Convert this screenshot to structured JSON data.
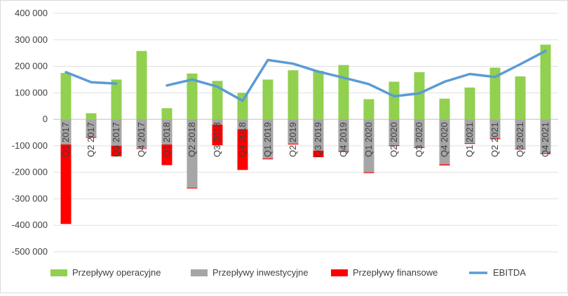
{
  "chart_data": {
    "type": "bar",
    "title": "",
    "xlabel": "",
    "ylabel": "",
    "ylim": [
      -500000,
      400000
    ],
    "yticks": [
      400000,
      300000,
      200000,
      100000,
      0,
      -100000,
      -200000,
      -300000,
      -400000,
      -500000
    ],
    "ytick_labels": [
      "400 000",
      "300 000",
      "200 000",
      "100 000",
      "0",
      "-100 000",
      "-200 000",
      "-300 000",
      "-400 000",
      "-500 000"
    ],
    "categories": [
      "Q1 2017",
      "Q2 2017",
      "Q3 2017",
      "Q4 2017",
      "Q1 2018",
      "Q2 2018",
      "Q3 2018",
      "Q4 2018",
      "Q1 2019",
      "Q2 2019",
      "Q3 2019",
      "Q4 2019",
      "Q1 2020",
      "Q2 2020",
      "Q3 2020",
      "Q4 2020",
      "Q1 2021",
      "Q2 2021",
      "Q3 2021",
      "Q4 2021"
    ],
    "legend_position": "bottom",
    "series": [
      {
        "name": "Przepływy operacyjne",
        "kind": "bar",
        "color": "#92d050",
        "values": [
          175000,
          23000,
          150000,
          258000,
          42000,
          173000,
          145000,
          100000,
          150000,
          185000,
          183000,
          205000,
          76000,
          142000,
          178000,
          78000,
          120000,
          195000,
          162000,
          282000
        ]
      },
      {
        "name": "Przepływy inwestycyjne",
        "kind": "bar",
        "color": "#a6a6a6",
        "values": [
          -95000,
          -67000,
          -100000,
          -110000,
          -95000,
          -258000,
          -20000,
          -38000,
          -148000,
          -92000,
          -118000,
          -120000,
          -200000,
          -98000,
          -105000,
          -170000,
          -90000,
          -72000,
          -112000,
          -128000
        ]
      },
      {
        "name": "Przepływy finansowe",
        "kind": "bar",
        "color": "#ff0000",
        "values": [
          -300000,
          -3000,
          -40000,
          -2000,
          -78000,
          -3000,
          -78000,
          -153000,
          -3000,
          -3000,
          -25000,
          -3000,
          -3000,
          -3000,
          -3000,
          -4000,
          -3000,
          -3000,
          -2000,
          -3000
        ]
      },
      {
        "name": "EBITDA",
        "kind": "line",
        "color": "#5b9bd5",
        "values": [
          178000,
          140000,
          135000,
          null,
          128000,
          150000,
          123000,
          70000,
          224000,
          210000,
          180000,
          157000,
          133000,
          87000,
          98000,
          142000,
          171000,
          160000,
          208000,
          258000
        ]
      }
    ]
  }
}
